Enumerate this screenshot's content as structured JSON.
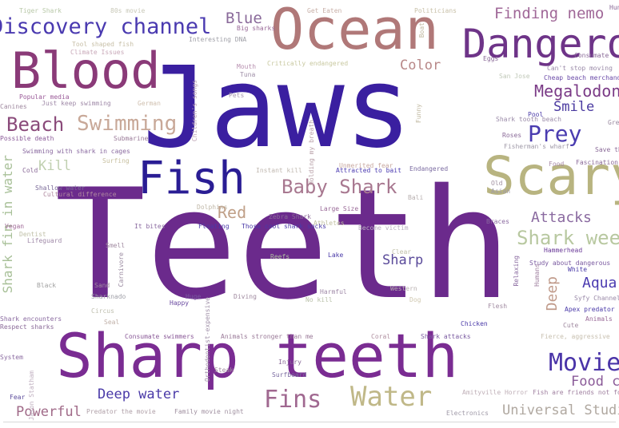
{
  "word_cloud": {
    "words": [
      {
        "text": "Teeth",
        "color": "#6b2a8c"
      },
      {
        "text": "Jaws",
        "color": "#3a1fa0"
      },
      {
        "text": "Ocean",
        "color": "#b07878"
      },
      {
        "text": "Blood",
        "color": "#8a3a78"
      },
      {
        "text": "Dangerous",
        "color": "#6e3488"
      },
      {
        "text": "Scary",
        "color": "#b8b480"
      },
      {
        "text": "Sharp teeth",
        "color": "#7a2c92"
      },
      {
        "text": "Fish",
        "color": "#2a1d94"
      },
      {
        "text": "Discovery channel",
        "color": "#4a3ab0"
      },
      {
        "text": "Beach",
        "color": "#8a4a7a"
      },
      {
        "text": "Swimming",
        "color": "#c8a898"
      },
      {
        "text": "Baby Shark",
        "color": "#a87890"
      },
      {
        "text": "Water",
        "color": "#c0b888"
      },
      {
        "text": "Movies",
        "color": "#4a34a8"
      },
      {
        "text": "Fins",
        "color": "#a06890"
      },
      {
        "text": "Prey",
        "color": "#4a3cb0"
      },
      {
        "text": "Megalodon",
        "color": "#7a3a86"
      },
      {
        "text": "Finding nemo",
        "color": "#a06898"
      },
      {
        "text": "Blue",
        "color": "#8a6a9a"
      },
      {
        "text": "Color",
        "color": "#b88888"
      },
      {
        "text": "Smile",
        "color": "#4a3aa0"
      },
      {
        "text": "Attacks",
        "color": "#8a6aa0"
      },
      {
        "text": "Shark week",
        "color": "#b8c8a0"
      },
      {
        "text": "Sharp",
        "color": "#5a4a9a"
      },
      {
        "text": "Aquarium",
        "color": "#4a3ab0"
      },
      {
        "text": "Deep",
        "color": "#c09a8a"
      },
      {
        "text": "Deep water",
        "color": "#4a3aa8"
      },
      {
        "text": "Powerful",
        "color": "#a06a88"
      },
      {
        "text": "Universal Studios",
        "color": "#b0a8a0"
      },
      {
        "text": "Food chain",
        "color": "#8a5a98"
      },
      {
        "text": "Red",
        "color": "#c0a088"
      },
      {
        "text": "Kill",
        "color": "#c0d0b0"
      },
      {
        "text": "Shark fin in water",
        "color": "#a8c098"
      },
      {
        "text": "Tiger Shark",
        "color": "#b8c8a8"
      },
      {
        "text": "80s movie",
        "color": "#c8c8b8"
      },
      {
        "text": "Get Eaten",
        "color": "#c8b0a8"
      },
      {
        "text": "Politicians",
        "color": "#c8c0a8"
      },
      {
        "text": "Big sharks",
        "color": "#9a6a98"
      },
      {
        "text": "Tool shaped fish",
        "color": "#c8c0a8"
      },
      {
        "text": "Climate Issues",
        "color": "#c8a8b8"
      },
      {
        "text": "Interesting DNA",
        "color": "#a0a0a8"
      },
      {
        "text": "Consumate",
        "color": "#8a6a98"
      },
      {
        "text": "Mouth",
        "color": "#b890b0"
      },
      {
        "text": "Critically endangered",
        "color": "#c8c8a0"
      },
      {
        "text": "Can't stop moving",
        "color": "#9a8aa8"
      },
      {
        "text": "Cheap beach merchandise",
        "color": "#6a4aa8"
      },
      {
        "text": "Popular media",
        "color": "#9a5a98"
      },
      {
        "text": "Just keep swimming",
        "color": "#a08aa8"
      },
      {
        "text": "German",
        "color": "#d0c0b0"
      },
      {
        "text": "Pets",
        "color": "#a898b0"
      },
      {
        "text": "Children's songs",
        "color": "#c0a8b8"
      },
      {
        "text": "Possible death",
        "color": "#8a5a98"
      },
      {
        "text": "Submarine",
        "color": "#9a7a98"
      },
      {
        "text": "Swimming with shark in cages",
        "color": "#8a6aa0"
      },
      {
        "text": "Surfing",
        "color": "#c8c0a0"
      },
      {
        "text": "Cold",
        "color": "#8a6a98"
      },
      {
        "text": "Shallow water",
        "color": "#7a6a98"
      },
      {
        "text": "Cultural difference",
        "color": "#b08aa0"
      },
      {
        "text": "Instant kill",
        "color": "#c0b8b0"
      },
      {
        "text": "Holding my breath",
        "color": "#b8a0a8"
      },
      {
        "text": "Unmerited fear",
        "color": "#c8a8a0"
      },
      {
        "text": "Attracted to bait",
        "color": "#4a3ab0"
      },
      {
        "text": "Endangered",
        "color": "#7a6aa0"
      },
      {
        "text": "Food",
        "color": "#a88aa8"
      },
      {
        "text": "Fascination",
        "color": "#8a6a98"
      },
      {
        "text": "Pool",
        "color": "#4a3aa8"
      },
      {
        "text": "Shark tooth beach",
        "color": "#9a8aa8"
      },
      {
        "text": "Roses",
        "color": "#8a6a98"
      },
      {
        "text": "Fisherman's wharf",
        "color": "#a09aa8"
      },
      {
        "text": "Save the sharks",
        "color": "#8a6a98"
      },
      {
        "text": "Vegan",
        "color": "#a06a98"
      },
      {
        "text": "Dentist",
        "color": "#c0c0a8"
      },
      {
        "text": "Lifeguard",
        "color": "#a08aa8"
      },
      {
        "text": "Dolphins",
        "color": "#c0b8a8"
      },
      {
        "text": "Large Size",
        "color": "#9a6a98"
      },
      {
        "text": "Zebra Shark",
        "color": "#8a6a98"
      },
      {
        "text": "Athletes",
        "color": "#c0c0a0"
      },
      {
        "text": "Bali",
        "color": "#b8b0b0"
      },
      {
        "text": "It bites",
        "color": "#8a6aa0"
      },
      {
        "text": "Floating",
        "color": "#4a3aa8"
      },
      {
        "text": "Those cool shark socks",
        "color": "#4a3aa8"
      },
      {
        "text": "Become victim",
        "color": "#b8b0c0"
      },
      {
        "text": "Braces",
        "color": "#8a6aa0"
      },
      {
        "text": "Hammerhead",
        "color": "#6a3a98"
      },
      {
        "text": "Study about dangerous",
        "color": "#7a5aa0"
      },
      {
        "text": "White",
        "color": "#4a3aa8"
      },
      {
        "text": "Smell",
        "color": "#a08aa0"
      },
      {
        "text": "Reefs",
        "color": "#b0c0a0"
      },
      {
        "text": "Lake",
        "color": "#4a3aa8"
      },
      {
        "text": "Clear",
        "color": "#c0c0a8"
      },
      {
        "text": "Black",
        "color": "#a0a0a0"
      },
      {
        "text": "Sand",
        "color": "#a08aa0"
      },
      {
        "text": "Sharknado",
        "color": "#a0a0a8"
      },
      {
        "text": "Huge",
        "color": "#7a5aa0"
      },
      {
        "text": "Happy",
        "color": "#6a4aa0"
      },
      {
        "text": "Diving",
        "color": "#a08aa0"
      },
      {
        "text": "Harmful",
        "color": "#a08aa8"
      },
      {
        "text": "No kill",
        "color": "#b8c0a8"
      },
      {
        "text": "Western",
        "color": "#b8b0b0"
      },
      {
        "text": "Dog",
        "color": "#d0c8b0"
      },
      {
        "text": "Relaxing",
        "color": "#8a6aa0"
      },
      {
        "text": "Humans",
        "color": "#a080a0"
      },
      {
        "text": "Syfy Channel",
        "color": "#9a8aa8"
      },
      {
        "text": "Apex predator",
        "color": "#4a3aa8"
      },
      {
        "text": "Animals",
        "color": "#9a6a98"
      },
      {
        "text": "Flesh",
        "color": "#a08aa0"
      },
      {
        "text": "Chicken",
        "color": "#4a3aa8"
      },
      {
        "text": "Cute",
        "color": "#a08aa0"
      },
      {
        "text": "Seal",
        "color": "#c0b0a8"
      },
      {
        "text": "Respect sharks",
        "color": "#8a6a98"
      },
      {
        "text": "Shark encounters",
        "color": "#8a6aa0"
      },
      {
        "text": "Consumate swimmers",
        "color": "#8a5a98"
      },
      {
        "text": "Animals stronger than me",
        "color": "#9a7a98"
      },
      {
        "text": "Coral",
        "color": "#b090a0"
      },
      {
        "text": "Shark attacks",
        "color": "#7a5aa0"
      },
      {
        "text": "Fierce, aggressive",
        "color": "#c8c0b0"
      },
      {
        "text": "Injury",
        "color": "#8a6a98"
      },
      {
        "text": "Surfboard",
        "color": "#7a6aa0"
      },
      {
        "text": "Steak",
        "color": "#a08aa0"
      },
      {
        "text": "Amityville Horror",
        "color": "#c0b0b8"
      },
      {
        "text": "Fish are friends not food",
        "color": "#a080a0"
      },
      {
        "text": "Fear",
        "color": "#5a4a9a"
      },
      {
        "text": "Predator the movie",
        "color": "#b0a0a8"
      },
      {
        "text": "Family movie night",
        "color": "#a090a0"
      },
      {
        "text": "Electronics",
        "color": "#a09aa8"
      },
      {
        "text": "Jason Statham",
        "color": "#c0b0c0"
      },
      {
        "text": "Carnivore",
        "color": "#9a8aa0"
      },
      {
        "text": "Circus",
        "color": "#c0c0b0"
      },
      {
        "text": "Funny",
        "color": "#c0b8a0"
      },
      {
        "text": "Asian",
        "color": "#a09aa8"
      },
      {
        "text": "Old",
        "color": "#a090a0"
      },
      {
        "text": "San Jose",
        "color": "#c0c8b8"
      },
      {
        "text": "Eggs",
        "color": "#8a6a98"
      },
      {
        "text": "Orthodontist-expensive",
        "color": "#a090a8"
      },
      {
        "text": "Canines",
        "color": "#a08aa0"
      },
      {
        "text": "System",
        "color": "#8a6aa0"
      },
      {
        "text": "Boat",
        "color": "#c0b8a0"
      },
      {
        "text": "Tuna",
        "color": "#a090a8"
      },
      {
        "text": "Hunt",
        "color": "#8a6a98"
      },
      {
        "text": "Grey",
        "color": "#9a8aa0"
      }
    ]
  }
}
